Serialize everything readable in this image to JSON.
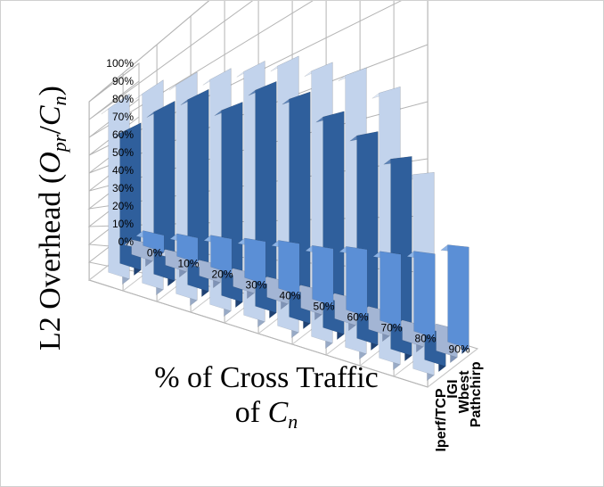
{
  "chart_data": {
    "type": "bar",
    "subtype": "3d-column",
    "ylabel": "L2 Overhead (O_pr/C_n)",
    "ylabel_parts": {
      "pre": "L2 Overhead (",
      "o": "O",
      "o_sub": "pr",
      "slash": "/",
      "c": "C",
      "c_sub": "n",
      "post": ")"
    },
    "xlabel_line1": "% of Cross Traffic",
    "xlabel_line2_prefix": "of ",
    "xlabel_line2_c": "C",
    "xlabel_line2_sub": "n",
    "categories": [
      "0%",
      "10%",
      "20%",
      "30%",
      "40%",
      "50%",
      "60%",
      "70%",
      "80%",
      "90%"
    ],
    "y_ticks": [
      "0%",
      "10%",
      "20%",
      "30%",
      "40%",
      "50%",
      "60%",
      "70%",
      "80%",
      "90%",
      "100%"
    ],
    "ylim": [
      0,
      100
    ],
    "grid": true,
    "series": [
      {
        "name": "Pathchirp",
        "values": [
          8,
          10,
          12,
          13,
          14,
          14,
          15,
          15,
          16,
          18
        ]
      },
      {
        "name": "Wbest",
        "values": [
          8,
          7,
          6,
          6,
          6,
          6,
          6,
          5,
          4,
          5
        ]
      },
      {
        "name": "IGI",
        "values": [
          70,
          72,
          70,
          61,
          63,
          57,
          50,
          44,
          38,
          6
        ]
      },
      {
        "name": "Iperf/TCP",
        "values": [
          88,
          84,
          79,
          74,
          71,
          68,
          63,
          59,
          53,
          36
        ]
      }
    ],
    "colors": {
      "Pathchirp": [
        "#5b8fd6",
        "#3c68a8",
        "#8cb3e6"
      ],
      "Wbest": [
        "#a3b5d4",
        "#7f93b6",
        "#c7d3e8"
      ],
      "IGI": [
        "#2f5f9c",
        "#1f4274",
        "#5c83b8"
      ],
      "Iperf/TCP": [
        "#c2d3ec",
        "#98aac6",
        "#dee8f7"
      ]
    }
  }
}
